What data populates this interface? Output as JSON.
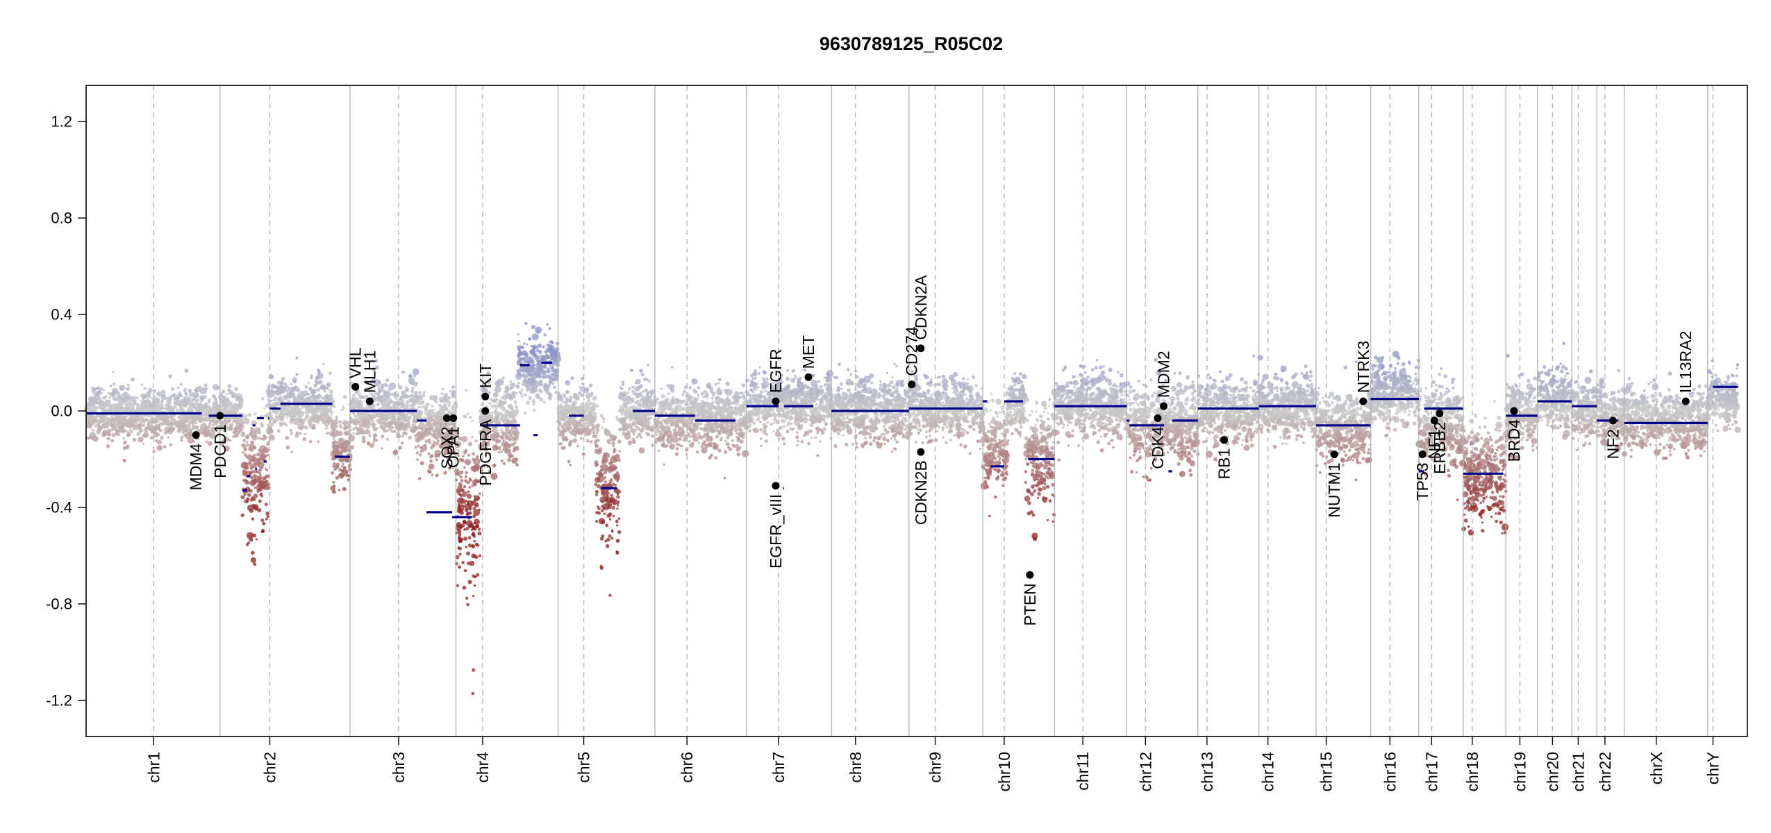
{
  "colors": {
    "segment": "#00008b",
    "gain": "#8a92c6",
    "neutral": "#c8c8c8",
    "loss": "#8b1e1e",
    "gene_point": "#000000",
    "chrom_boundary": "#b4b4b4",
    "centromere": "#b4b4b4"
  },
  "chart_data": {
    "type": "scatter",
    "title": "9630789125_R05C02",
    "xlabel": "",
    "ylabel": "",
    "ylim": [
      -1.35,
      1.35
    ],
    "grid": false,
    "yticks": [
      {
        "value": 1.2,
        "label": "1.2"
      },
      {
        "value": 0.8,
        "label": "0.8"
      },
      {
        "value": 0.4,
        "label": "0.4"
      },
      {
        "value": 0.0,
        "label": "0.0"
      },
      {
        "value": -0.4,
        "label": "-0.4"
      },
      {
        "value": -0.8,
        "label": "-0.8"
      },
      {
        "value": -1.2,
        "label": "-1.2"
      }
    ],
    "genome_length_mb": 3103,
    "chromosomes": [
      {
        "name": "chr1",
        "length": 249,
        "centromere": 125
      },
      {
        "name": "chr2",
        "length": 243,
        "centromere": 93
      },
      {
        "name": "chr3",
        "length": 198,
        "centromere": 91
      },
      {
        "name": "chr4",
        "length": 191,
        "centromere": 50
      },
      {
        "name": "chr5",
        "length": 181,
        "centromere": 48
      },
      {
        "name": "chr6",
        "length": 171,
        "centromere": 60
      },
      {
        "name": "chr7",
        "length": 159,
        "centromere": 60
      },
      {
        "name": "chr8",
        "length": 145,
        "centromere": 45
      },
      {
        "name": "chr9",
        "length": 138,
        "centromere": 49
      },
      {
        "name": "chr10",
        "length": 134,
        "centromere": 40
      },
      {
        "name": "chr11",
        "length": 135,
        "centromere": 53
      },
      {
        "name": "chr12",
        "length": 133,
        "centromere": 35
      },
      {
        "name": "chr13",
        "length": 114,
        "centromere": 17
      },
      {
        "name": "chr14",
        "length": 107,
        "centromere": 17
      },
      {
        "name": "chr15",
        "length": 102,
        "centromere": 19
      },
      {
        "name": "chr16",
        "length": 90,
        "centromere": 36
      },
      {
        "name": "chr17",
        "length": 83,
        "centromere": 24
      },
      {
        "name": "chr18",
        "length": 80,
        "centromere": 17
      },
      {
        "name": "chr19",
        "length": 59,
        "centromere": 26
      },
      {
        "name": "chr20",
        "length": 64,
        "centromere": 28
      },
      {
        "name": "chr21",
        "length": 47,
        "centromere": 12
      },
      {
        "name": "chr22",
        "length": 51,
        "centromere": 15
      },
      {
        "name": "chrX",
        "length": 156,
        "centromere": 60
      },
      {
        "name": "chrY",
        "length": 57,
        "centromere": 10
      }
    ],
    "segments": [
      {
        "chrom": "chr1",
        "start": 0,
        "end": 215,
        "value": -0.01
      },
      {
        "chrom": "chr1",
        "start": 228,
        "end": 249,
        "value": -0.02
      },
      {
        "chrom": "chr2",
        "start": 0,
        "end": 42,
        "value": -0.02
      },
      {
        "chrom": "chr2",
        "start": 42,
        "end": 50,
        "value": -0.33
      },
      {
        "chrom": "chr2",
        "start": 50,
        "end": 56,
        "value": -0.27
      },
      {
        "chrom": "chr2",
        "start": 61,
        "end": 66,
        "value": -0.06
      },
      {
        "chrom": "chr2",
        "start": 66,
        "end": 69,
        "value": -0.24
      },
      {
        "chrom": "chr2",
        "start": 69,
        "end": 82,
        "value": -0.03
      },
      {
        "chrom": "chr2",
        "start": 82,
        "end": 87,
        "value": -0.21
      },
      {
        "chrom": "chr2",
        "start": 90,
        "end": 92,
        "value": -0.03
      },
      {
        "chrom": "chr2",
        "start": 93,
        "end": 113,
        "value": 0.01
      },
      {
        "chrom": "chr2",
        "start": 113,
        "end": 125,
        "value": 0.03
      },
      {
        "chrom": "chr2",
        "start": 125,
        "end": 210,
        "value": 0.03
      },
      {
        "chrom": "chr2",
        "start": 215,
        "end": 243,
        "value": -0.19
      },
      {
        "chrom": "chr3",
        "start": 0,
        "end": 125,
        "value": 0.0
      },
      {
        "chrom": "chr3",
        "start": 125,
        "end": 143,
        "value": -0.04
      },
      {
        "chrom": "chr3",
        "start": 143,
        "end": 191,
        "value": -0.42
      },
      {
        "chrom": "chr3",
        "start": 191,
        "end": 198,
        "value": -0.44
      },
      {
        "chrom": "chr4",
        "start": 0,
        "end": 30,
        "value": -0.44
      },
      {
        "chrom": "chr4",
        "start": 45,
        "end": 120,
        "value": -0.06
      },
      {
        "chrom": "chr4",
        "start": 120,
        "end": 138,
        "value": 0.19
      },
      {
        "chrom": "chr4",
        "start": 145,
        "end": 153,
        "value": -0.1
      },
      {
        "chrom": "chr4",
        "start": 160,
        "end": 180,
        "value": 0.2
      },
      {
        "chrom": "chr5",
        "start": 20,
        "end": 48,
        "value": -0.02
      },
      {
        "chrom": "chr5",
        "start": 80,
        "end": 110,
        "value": -0.32
      },
      {
        "chrom": "chr5",
        "start": 140,
        "end": 181,
        "value": 0.0
      },
      {
        "chrom": "chr6",
        "start": 0,
        "end": 75,
        "value": -0.02
      },
      {
        "chrom": "chr6",
        "start": 75,
        "end": 150,
        "value": -0.04
      },
      {
        "chrom": "chr7",
        "start": 0,
        "end": 60,
        "value": 0.02
      },
      {
        "chrom": "chr7",
        "start": 68,
        "end": 70,
        "value": -0.32
      },
      {
        "chrom": "chr7",
        "start": 70,
        "end": 125,
        "value": 0.02
      },
      {
        "chrom": "chr8",
        "start": 0,
        "end": 145,
        "value": 0.0
      },
      {
        "chrom": "chr9",
        "start": 0,
        "end": 138,
        "value": 0.01
      },
      {
        "chrom": "chr10",
        "start": 0,
        "end": 8,
        "value": 0.04
      },
      {
        "chrom": "chr10",
        "start": 15,
        "end": 40,
        "value": -0.23
      },
      {
        "chrom": "chr10",
        "start": 40,
        "end": 75,
        "value": 0.04
      },
      {
        "chrom": "chr10",
        "start": 85,
        "end": 134,
        "value": -0.2
      },
      {
        "chrom": "chr11",
        "start": 0,
        "end": 135,
        "value": 0.02
      },
      {
        "chrom": "chr12",
        "start": 0,
        "end": 5,
        "value": -0.04
      },
      {
        "chrom": "chr12",
        "start": 5,
        "end": 70,
        "value": -0.06
      },
      {
        "chrom": "chr12",
        "start": 78,
        "end": 85,
        "value": -0.25
      },
      {
        "chrom": "chr12",
        "start": 85,
        "end": 133,
        "value": -0.04
      },
      {
        "chrom": "chr13",
        "start": 0,
        "end": 114,
        "value": 0.01
      },
      {
        "chrom": "chr14",
        "start": 0,
        "end": 107,
        "value": 0.02
      },
      {
        "chrom": "chr15",
        "start": 0,
        "end": 102,
        "value": -0.06
      },
      {
        "chrom": "chr16",
        "start": 0,
        "end": 90,
        "value": 0.05
      },
      {
        "chrom": "chr17",
        "start": 0,
        "end": 10,
        "value": -0.25
      },
      {
        "chrom": "chr17",
        "start": 10,
        "end": 83,
        "value": 0.01
      },
      {
        "chrom": "chr18",
        "start": 0,
        "end": 75,
        "value": -0.26
      },
      {
        "chrom": "chr19",
        "start": 0,
        "end": 59,
        "value": -0.02
      },
      {
        "chrom": "chr20",
        "start": 0,
        "end": 64,
        "value": 0.04
      },
      {
        "chrom": "chr21",
        "start": 0,
        "end": 47,
        "value": 0.02
      },
      {
        "chrom": "chr22",
        "start": 0,
        "end": 40,
        "value": -0.04
      },
      {
        "chrom": "chrX",
        "start": 0,
        "end": 156,
        "value": -0.05
      },
      {
        "chrom": "chrY",
        "start": 10,
        "end": 57,
        "value": 0.1
      }
    ],
    "genes": [
      {
        "name": "MDM4",
        "chrom": "chr1",
        "pos": 204,
        "value": -0.1,
        "label_side": "below"
      },
      {
        "name": "PDCD1",
        "chrom": "chr2",
        "pos": 0,
        "value": -0.02,
        "label_side": "below"
      },
      {
        "name": "VHL",
        "chrom": "chr3",
        "pos": 10,
        "value": 0.1,
        "label_side": "above"
      },
      {
        "name": "MLH1",
        "chrom": "chr3",
        "pos": 37,
        "value": 0.04,
        "label_side": "above"
      },
      {
        "name": "SOX2",
        "chrom": "chr3",
        "pos": 181,
        "value": -0.03,
        "label_side": "below"
      },
      {
        "name": "OPA1",
        "chrom": "chr3",
        "pos": 193,
        "value": -0.03,
        "label_side": "below"
      },
      {
        "name": "KIT",
        "chrom": "chr4",
        "pos": 55,
        "value": 0.06,
        "label_side": "above"
      },
      {
        "name": "PDGFRA",
        "chrom": "chr4",
        "pos": 55,
        "value": 0.0,
        "label_side": "below"
      },
      {
        "name": "EGFR",
        "chrom": "chr7",
        "pos": 55,
        "value": 0.04,
        "label_side": "above"
      },
      {
        "name": "EGFR_vIII",
        "chrom": "chr7",
        "pos": 55,
        "value": -0.31,
        "label_side": "below"
      },
      {
        "name": "MET",
        "chrom": "chr7",
        "pos": 116,
        "value": 0.14,
        "label_side": "above"
      },
      {
        "name": "CD274",
        "chrom": "chr9",
        "pos": 5,
        "value": 0.11,
        "label_side": "above"
      },
      {
        "name": "CDKN2A",
        "chrom": "chr9",
        "pos": 22,
        "value": 0.26,
        "label_side": "above"
      },
      {
        "name": "CDKN2B",
        "chrom": "chr9",
        "pos": 22,
        "value": -0.17,
        "label_side": "below"
      },
      {
        "name": "PTEN",
        "chrom": "chr10",
        "pos": 88,
        "value": -0.68,
        "label_side": "below"
      },
      {
        "name": "CDK4",
        "chrom": "chr12",
        "pos": 58,
        "value": -0.03,
        "label_side": "below"
      },
      {
        "name": "MDM2",
        "chrom": "chr12",
        "pos": 69,
        "value": 0.02,
        "label_side": "above"
      },
      {
        "name": "RB1",
        "chrom": "chr13",
        "pos": 49,
        "value": -0.12,
        "label_side": "below"
      },
      {
        "name": "NUTM1",
        "chrom": "chr15",
        "pos": 34,
        "value": -0.18,
        "label_side": "below"
      },
      {
        "name": "NTRK3",
        "chrom": "chr15",
        "pos": 88,
        "value": 0.04,
        "label_side": "above"
      },
      {
        "name": "TP53",
        "chrom": "chr17",
        "pos": 7,
        "value": -0.18,
        "label_side": "below"
      },
      {
        "name": "NF1",
        "chrom": "chr17",
        "pos": 29,
        "value": -0.04,
        "label_side": "below"
      },
      {
        "name": "ERBB2",
        "chrom": "chr17",
        "pos": 39,
        "value": -0.01,
        "label_side": "below"
      },
      {
        "name": "BRD4",
        "chrom": "chr19",
        "pos": 15,
        "value": 0.0,
        "label_side": "below"
      },
      {
        "name": "NF2",
        "chrom": "chr22",
        "pos": 30,
        "value": -0.04,
        "label_side": "below"
      },
      {
        "name": "IL13RA2",
        "chrom": "chrX",
        "pos": 115,
        "value": 0.04,
        "label_side": "above"
      }
    ],
    "probe_profile": [
      {
        "chrom": "chr1",
        "start": 0,
        "end": 249,
        "base": -0.01,
        "spread": 0.05,
        "tail": 0.05
      },
      {
        "chrom": "chr2",
        "start": 0,
        "end": 42,
        "base": -0.02,
        "spread": 0.05,
        "tail": 0.04
      },
      {
        "chrom": "chr2",
        "start": 42,
        "end": 90,
        "base": -0.25,
        "spread": 0.12,
        "tail": 0.35
      },
      {
        "chrom": "chr2",
        "start": 90,
        "end": 210,
        "base": 0.02,
        "spread": 0.06,
        "tail": 0.03
      },
      {
        "chrom": "chr2",
        "start": 210,
        "end": 243,
        "base": -0.15,
        "spread": 0.08,
        "tail": 0.1
      },
      {
        "chrom": "chr3",
        "start": 0,
        "end": 125,
        "base": 0.0,
        "spread": 0.06,
        "tail": 0.05
      },
      {
        "chrom": "chr3",
        "start": 125,
        "end": 198,
        "base": -0.05,
        "spread": 0.08,
        "tail": 0.1
      },
      {
        "chrom": "chr4",
        "start": 0,
        "end": 45,
        "base": -0.4,
        "spread": 0.15,
        "tail": 0.5
      },
      {
        "chrom": "chr4",
        "start": 45,
        "end": 115,
        "base": -0.05,
        "spread": 0.08,
        "tail": 0.1
      },
      {
        "chrom": "chr4",
        "start": 115,
        "end": 191,
        "base": 0.18,
        "spread": 0.06,
        "tail": 0.03
      },
      {
        "chrom": "chr5",
        "start": 0,
        "end": 70,
        "base": -0.02,
        "spread": 0.06,
        "tail": 0.05
      },
      {
        "chrom": "chr5",
        "start": 70,
        "end": 115,
        "base": -0.3,
        "spread": 0.13,
        "tail": 0.35
      },
      {
        "chrom": "chr5",
        "start": 115,
        "end": 181,
        "base": 0.0,
        "spread": 0.06,
        "tail": 0.05
      },
      {
        "chrom": "chr6",
        "start": 0,
        "end": 171,
        "base": -0.03,
        "spread": 0.06,
        "tail": 0.06
      },
      {
        "chrom": "chr7",
        "start": 0,
        "end": 159,
        "base": 0.02,
        "spread": 0.06,
        "tail": 0.05
      },
      {
        "chrom": "chr8",
        "start": 0,
        "end": 145,
        "base": 0.0,
        "spread": 0.06,
        "tail": 0.05
      },
      {
        "chrom": "chr9",
        "start": 0,
        "end": 138,
        "base": 0.01,
        "spread": 0.06,
        "tail": 0.05
      },
      {
        "chrom": "chr10",
        "start": 0,
        "end": 45,
        "base": -0.15,
        "spread": 0.08,
        "tail": 0.2
      },
      {
        "chrom": "chr10",
        "start": 45,
        "end": 80,
        "base": 0.03,
        "spread": 0.06,
        "tail": 0.05
      },
      {
        "chrom": "chr10",
        "start": 80,
        "end": 134,
        "base": -0.2,
        "spread": 0.1,
        "tail": 0.2
      },
      {
        "chrom": "chr11",
        "start": 0,
        "end": 135,
        "base": 0.02,
        "spread": 0.06,
        "tail": 0.05
      },
      {
        "chrom": "chr12",
        "start": 0,
        "end": 133,
        "base": -0.05,
        "spread": 0.08,
        "tail": 0.15
      },
      {
        "chrom": "chr13",
        "start": 0,
        "end": 114,
        "base": 0.0,
        "spread": 0.06,
        "tail": 0.08
      },
      {
        "chrom": "chr14",
        "start": 0,
        "end": 107,
        "base": 0.02,
        "spread": 0.06,
        "tail": 0.05
      },
      {
        "chrom": "chr15",
        "start": 0,
        "end": 102,
        "base": -0.06,
        "spread": 0.07,
        "tail": 0.08
      },
      {
        "chrom": "chr16",
        "start": 0,
        "end": 90,
        "base": 0.07,
        "spread": 0.06,
        "tail": 0.05
      },
      {
        "chrom": "chr17",
        "start": 0,
        "end": 83,
        "base": -0.05,
        "spread": 0.08,
        "tail": 0.12
      },
      {
        "chrom": "chr18",
        "start": 0,
        "end": 80,
        "base": -0.26,
        "spread": 0.1,
        "tail": 0.2
      },
      {
        "chrom": "chr19",
        "start": 0,
        "end": 59,
        "base": -0.01,
        "spread": 0.06,
        "tail": 0.05
      },
      {
        "chrom": "chr20",
        "start": 0,
        "end": 64,
        "base": 0.05,
        "spread": 0.06,
        "tail": 0.04
      },
      {
        "chrom": "chr21",
        "start": 0,
        "end": 47,
        "base": 0.0,
        "spread": 0.06,
        "tail": 0.06
      },
      {
        "chrom": "chr22",
        "start": 0,
        "end": 51,
        "base": -0.03,
        "spread": 0.06,
        "tail": 0.06
      },
      {
        "chrom": "chrX",
        "start": 0,
        "end": 156,
        "base": -0.04,
        "spread": 0.06,
        "tail": 0.06
      },
      {
        "chrom": "chrY",
        "start": 0,
        "end": 57,
        "base": 0.05,
        "spread": 0.05,
        "tail": 0.03
      }
    ]
  }
}
